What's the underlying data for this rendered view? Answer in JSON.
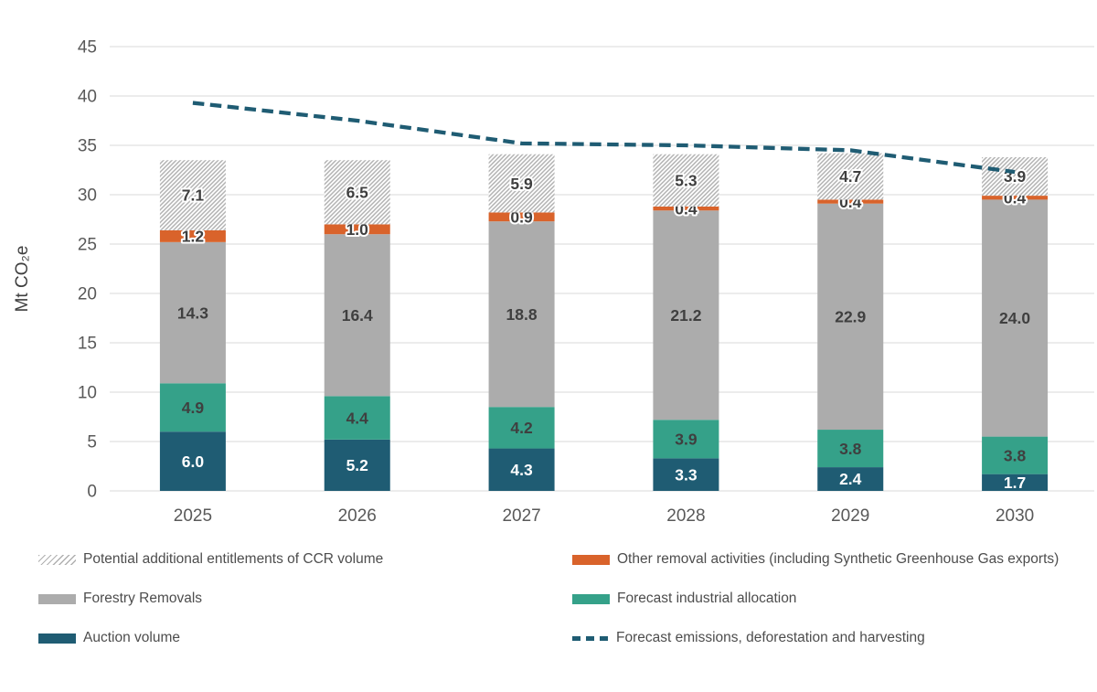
{
  "chart_data": {
    "type": "bar",
    "stacked": true,
    "title": "",
    "xlabel": "",
    "ylabel": "Mt CO₂e",
    "ylim": [
      0,
      45
    ],
    "ytick_step": 5,
    "grid": true,
    "legend_position": "bottom",
    "categories": [
      "2025",
      "2026",
      "2027",
      "2028",
      "2029",
      "2030"
    ],
    "series": [
      {
        "name": "Auction volume",
        "values": [
          6.0,
          5.2,
          4.3,
          3.3,
          2.4,
          1.7
        ],
        "color": "#1F5C73",
        "label_color": "#FFFFFF",
        "style": "solid",
        "halo": false
      },
      {
        "name": "Forecast industrial allocation",
        "values": [
          4.9,
          4.4,
          4.2,
          3.9,
          3.8,
          3.8
        ],
        "color": "#35A189",
        "label_color": "#3F3F3F",
        "style": "solid",
        "halo": false
      },
      {
        "name": "Forestry Removals",
        "values": [
          14.3,
          16.4,
          18.8,
          21.2,
          22.9,
          24.0
        ],
        "color": "#ACACAC",
        "label_color": "#3F3F3F",
        "style": "solid",
        "halo": false
      },
      {
        "name": "Other removal activities (including Synthetic Greenhouse Gas exports)",
        "values": [
          1.2,
          1.0,
          0.9,
          0.4,
          0.4,
          0.4
        ],
        "color": "#D9632B",
        "label_color": "#3F3F3F",
        "style": "solid",
        "halo": true
      },
      {
        "name": "Potential additional entitlements of CCR volume",
        "values": [
          7.1,
          6.5,
          5.9,
          5.3,
          4.7,
          3.9
        ],
        "color": "hatch",
        "hatch_stripe": "#B0B0B0",
        "hatch_background": "#FFFFFF",
        "label_color": "#3F3F3F",
        "style": "hatch",
        "halo": true
      }
    ],
    "line_series": {
      "name": "Forecast emissions, deforestation and harvesting",
      "values": [
        39.3,
        37.5,
        35.2,
        35.0,
        34.5,
        32.3
      ],
      "color": "#1F5C73",
      "dash": true
    },
    "axis_text_color": "#595959",
    "ylabel_color": "#3F3F3F",
    "gridline_color": "#D9D9D9"
  }
}
